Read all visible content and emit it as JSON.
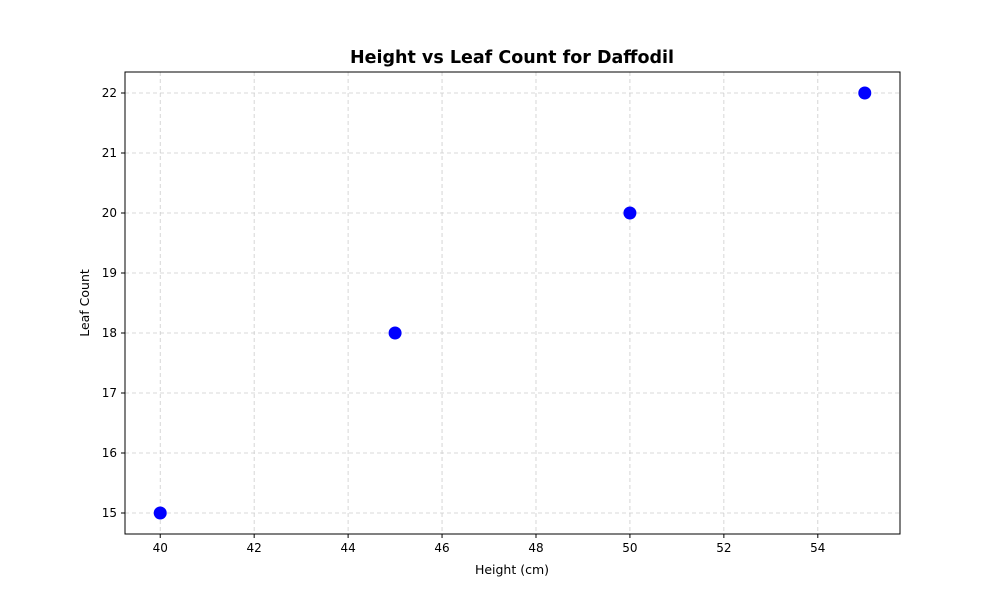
{
  "chart_data": {
    "type": "scatter",
    "title": "Height vs Leaf Count for Daffodil",
    "xlabel": "Height (cm)",
    "ylabel": "Leaf Count",
    "x": [
      40,
      45,
      50,
      55
    ],
    "y": [
      15,
      18,
      20,
      22
    ],
    "xlim": [
      39.25,
      55.75
    ],
    "ylim": [
      14.65,
      22.35
    ],
    "xticks": [
      40,
      42,
      44,
      46,
      48,
      50,
      52,
      54
    ],
    "yticks": [
      15,
      16,
      17,
      18,
      19,
      20,
      21,
      22
    ],
    "grid": true,
    "marker_color": "#0000ff"
  }
}
